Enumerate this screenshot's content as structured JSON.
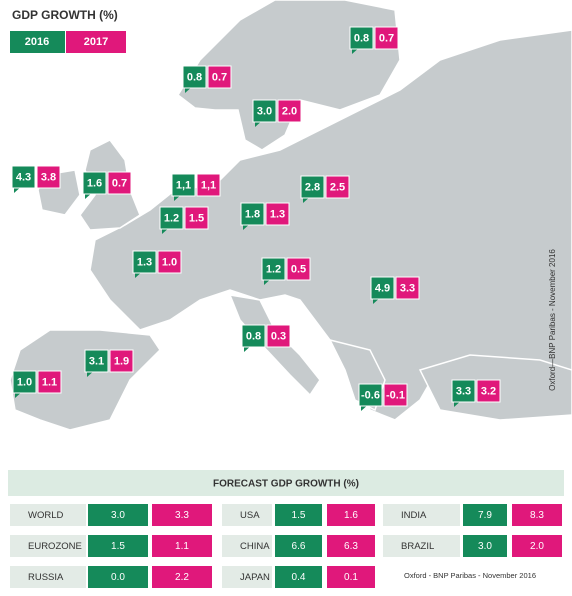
{
  "title": "GDP GROWTH (%)",
  "legend": [
    "2016",
    "2017"
  ],
  "markers": [
    [
      "0.8",
      "0.7"
    ],
    [
      "0.8",
      "0.7"
    ],
    [
      "3.0",
      "2.0"
    ],
    [
      "4.3",
      "3.8"
    ],
    [
      "1.6",
      "0.7"
    ],
    [
      "1,1",
      "1,1"
    ],
    [
      "2.8",
      "2.5"
    ],
    [
      "1.2",
      "1.5"
    ],
    [
      "1.8",
      "1.3"
    ],
    [
      "1.3",
      "1.0"
    ],
    [
      "1.2",
      "0.5"
    ],
    [
      "4.9",
      "3.3"
    ],
    [
      "0.8",
      "0.3"
    ],
    [
      "3.1",
      "1.9"
    ],
    [
      "1.0",
      "1.1"
    ],
    [
      "-0.6",
      "-0.1"
    ],
    [
      "3.3",
      "3.2"
    ]
  ],
  "side_note": "Oxford—BNP Paribas - November 2016",
  "table": {
    "title": "FORECAST GDP GROWTH (%)",
    "rows": [
      [
        {
          "name": "WORLD",
          "values": [
            "3.0",
            "3.3"
          ]
        },
        {
          "name": "USA",
          "values": [
            "1.5",
            "1.6"
          ]
        },
        {
          "name": "INDIA",
          "values": [
            "7.9",
            "8.3"
          ]
        }
      ],
      [
        {
          "name": "EUROZONE",
          "values": [
            "1.5",
            "1.1"
          ]
        },
        {
          "name": "CHINA",
          "values": [
            "6.6",
            "6.3"
          ]
        },
        {
          "name": "BRAZIL",
          "values": [
            "3.0",
            "2.0"
          ]
        }
      ],
      [
        {
          "name": "RUSSIA",
          "values": [
            "0.0",
            "2.2"
          ]
        },
        {
          "name": "JAPAN",
          "values": [
            "0.4",
            "0.1"
          ]
        }
      ]
    ],
    "note": "Oxford - BNP Paribas - November 2016"
  }
}
